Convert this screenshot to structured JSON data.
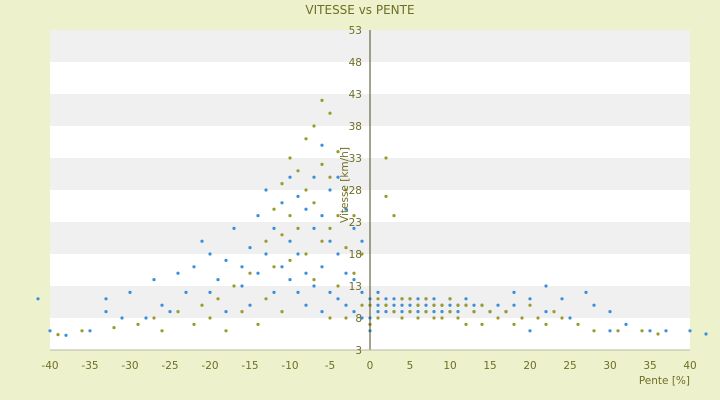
{
  "chart_data": {
    "type": "scatter",
    "title": "VITESSE vs PENTE",
    "xlabel": "Pente [%]",
    "ylabel": "Vitesse [km/h]",
    "xlim": [
      -40,
      40
    ],
    "ylim": [
      3,
      53
    ],
    "x_ticks": [
      -40,
      -35,
      -30,
      -25,
      -20,
      -15,
      -10,
      -5,
      0,
      5,
      10,
      15,
      20,
      25,
      30,
      35,
      40
    ],
    "y_ticks": [
      3,
      8,
      13,
      18,
      23,
      28,
      33,
      38,
      43,
      48,
      53
    ],
    "grid": "horizontal bands",
    "legend": "none",
    "colors": {
      "plot_background": "#ffffff",
      "band": "#f0f0f0",
      "series_a": "#3a8fd8",
      "series_b": "#9a9a2e",
      "text": "#6e6e26",
      "page_background": "#eef2cc"
    },
    "series": [
      {
        "color": "#3a8fd8",
        "points": [
          [
            -41.5,
            11
          ],
          [
            -40,
            6
          ],
          [
            -38,
            5.3
          ],
          [
            -35,
            6
          ],
          [
            -33,
            11
          ],
          [
            -33,
            9
          ],
          [
            -31,
            8
          ],
          [
            -30,
            12
          ],
          [
            -28,
            8
          ],
          [
            -27,
            14
          ],
          [
            -26,
            10
          ],
          [
            -25,
            9
          ],
          [
            -24,
            15
          ],
          [
            -23,
            12
          ],
          [
            -22,
            16
          ],
          [
            -21,
            20
          ],
          [
            -20,
            12
          ],
          [
            -20,
            18
          ],
          [
            -19,
            14
          ],
          [
            -18,
            9
          ],
          [
            -18,
            17
          ],
          [
            -17,
            22
          ],
          [
            -16,
            16
          ],
          [
            -16,
            13
          ],
          [
            -15,
            19
          ],
          [
            -15,
            10
          ],
          [
            -14,
            24
          ],
          [
            -14,
            15
          ],
          [
            -13,
            18
          ],
          [
            -13,
            28
          ],
          [
            -12,
            22
          ],
          [
            -12,
            12
          ],
          [
            -11,
            26
          ],
          [
            -11,
            16
          ],
          [
            -10,
            30
          ],
          [
            -10,
            20
          ],
          [
            -10,
            14
          ],
          [
            -9,
            27
          ],
          [
            -9,
            18
          ],
          [
            -9,
            12
          ],
          [
            -8,
            25
          ],
          [
            -8,
            15
          ],
          [
            -8,
            10
          ],
          [
            -7,
            30
          ],
          [
            -7,
            22
          ],
          [
            -7,
            13
          ],
          [
            -6,
            35
          ],
          [
            -6,
            24
          ],
          [
            -6,
            16
          ],
          [
            -6,
            9
          ],
          [
            -5,
            28
          ],
          [
            -5,
            20
          ],
          [
            -5,
            12
          ],
          [
            -4,
            30
          ],
          [
            -4,
            18
          ],
          [
            -4,
            11
          ],
          [
            -3,
            25
          ],
          [
            -3,
            15
          ],
          [
            -3,
            10
          ],
          [
            -2,
            22
          ],
          [
            -2,
            14
          ],
          [
            -2,
            9
          ],
          [
            -1,
            20
          ],
          [
            -1,
            12
          ],
          [
            -1,
            8
          ],
          [
            0,
            11
          ],
          [
            0,
            8
          ],
          [
            0,
            6
          ],
          [
            1,
            12
          ],
          [
            1,
            10
          ],
          [
            1,
            9
          ],
          [
            2,
            11
          ],
          [
            2,
            10
          ],
          [
            2,
            9
          ],
          [
            3,
            11
          ],
          [
            3,
            10
          ],
          [
            3,
            9
          ],
          [
            4,
            11
          ],
          [
            4,
            10
          ],
          [
            4,
            9
          ],
          [
            5,
            11
          ],
          [
            5,
            10
          ],
          [
            5,
            9
          ],
          [
            6,
            11
          ],
          [
            6,
            10
          ],
          [
            6,
            9
          ],
          [
            7,
            11
          ],
          [
            7,
            10
          ],
          [
            7,
            9
          ],
          [
            8,
            11
          ],
          [
            8,
            10
          ],
          [
            8,
            9
          ],
          [
            9,
            10
          ],
          [
            9,
            9
          ],
          [
            10,
            11
          ],
          [
            10,
            10
          ],
          [
            10,
            9
          ],
          [
            11,
            10
          ],
          [
            11,
            9
          ],
          [
            12,
            11
          ],
          [
            12,
            10
          ],
          [
            13,
            10
          ],
          [
            13,
            9
          ],
          [
            14,
            10
          ],
          [
            15,
            9
          ],
          [
            16,
            10
          ],
          [
            17,
            9
          ],
          [
            18,
            12
          ],
          [
            18,
            10
          ],
          [
            20,
            11
          ],
          [
            20,
            6
          ],
          [
            22,
            9
          ],
          [
            22,
            13
          ],
          [
            24,
            11
          ],
          [
            25,
            8
          ],
          [
            27,
            12
          ],
          [
            28,
            10
          ],
          [
            30,
            9
          ],
          [
            30,
            6
          ],
          [
            32,
            7
          ],
          [
            35,
            6
          ],
          [
            37,
            6
          ],
          [
            40,
            6
          ],
          [
            42,
            5.5
          ]
        ]
      },
      {
        "color": "#9a9a2e",
        "points": [
          [
            -39,
            5.4
          ],
          [
            -36,
            6
          ],
          [
            -32,
            6.5
          ],
          [
            -29,
            7
          ],
          [
            -27,
            8
          ],
          [
            -26,
            6
          ],
          [
            -24,
            9
          ],
          [
            -22,
            7
          ],
          [
            -21,
            10
          ],
          [
            -20,
            8
          ],
          [
            -19,
            11
          ],
          [
            -18,
            6
          ],
          [
            -17,
            13
          ],
          [
            -16,
            9
          ],
          [
            -15,
            15
          ],
          [
            -14,
            7
          ],
          [
            -13,
            20
          ],
          [
            -13,
            11
          ],
          [
            -12,
            25
          ],
          [
            -12,
            16
          ],
          [
            -11,
            29
          ],
          [
            -11,
            21
          ],
          [
            -11,
            9
          ],
          [
            -10,
            33
          ],
          [
            -10,
            24
          ],
          [
            -10,
            17
          ],
          [
            -9,
            31
          ],
          [
            -9,
            22
          ],
          [
            -8,
            36
          ],
          [
            -8,
            28
          ],
          [
            -8,
            18
          ],
          [
            -7,
            38
          ],
          [
            -7,
            26
          ],
          [
            -7,
            14
          ],
          [
            -6,
            42
          ],
          [
            -6,
            32
          ],
          [
            -6,
            20
          ],
          [
            -5,
            40
          ],
          [
            -5,
            30
          ],
          [
            -5,
            22
          ],
          [
            -5,
            8
          ],
          [
            -4,
            34
          ],
          [
            -4,
            24
          ],
          [
            -4,
            13
          ],
          [
            -3,
            28
          ],
          [
            -3,
            19
          ],
          [
            -3,
            8
          ],
          [
            -2,
            24
          ],
          [
            -2,
            15
          ],
          [
            -1,
            18
          ],
          [
            -1,
            10
          ],
          [
            0,
            10
          ],
          [
            0,
            7
          ],
          [
            1,
            11
          ],
          [
            1,
            8
          ],
          [
            2,
            33
          ],
          [
            2,
            27
          ],
          [
            2,
            10
          ],
          [
            3,
            24
          ],
          [
            3,
            9
          ],
          [
            4,
            11
          ],
          [
            4,
            8
          ],
          [
            5,
            11
          ],
          [
            5,
            9
          ],
          [
            6,
            10
          ],
          [
            6,
            8
          ],
          [
            7,
            11
          ],
          [
            7,
            9
          ],
          [
            8,
            10
          ],
          [
            8,
            8
          ],
          [
            9,
            10
          ],
          [
            9,
            8
          ],
          [
            10,
            11
          ],
          [
            10,
            9
          ],
          [
            11,
            10
          ],
          [
            11,
            8
          ],
          [
            12,
            10
          ],
          [
            12,
            7
          ],
          [
            13,
            9
          ],
          [
            14,
            10
          ],
          [
            14,
            7
          ],
          [
            15,
            9
          ],
          [
            16,
            8
          ],
          [
            17,
            9
          ],
          [
            18,
            7
          ],
          [
            19,
            8
          ],
          [
            20,
            10
          ],
          [
            21,
            8
          ],
          [
            22,
            7
          ],
          [
            23,
            9
          ],
          [
            24,
            8
          ],
          [
            26,
            7
          ],
          [
            28,
            6
          ],
          [
            31,
            6
          ],
          [
            34,
            6
          ],
          [
            36,
            5.5
          ]
        ]
      }
    ]
  }
}
